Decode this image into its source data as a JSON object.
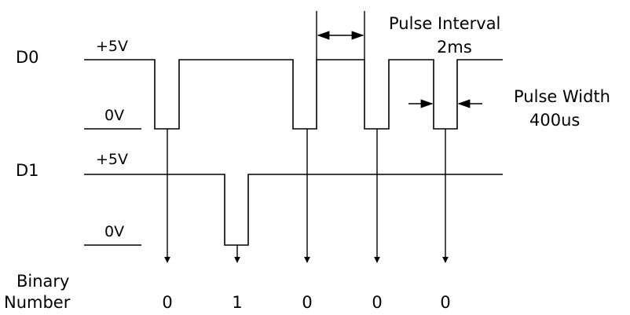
{
  "signals": {
    "d0": {
      "name": "D0",
      "high": "+5V",
      "low": "0V"
    },
    "d1": {
      "name": "D1",
      "high": "+5V",
      "low": "0V"
    }
  },
  "annotations": {
    "interval_title": "Pulse Interval",
    "interval_value": "2ms",
    "width_title": "Pulse Width",
    "width_value": "400us"
  },
  "binary": {
    "label_line1": "Binary",
    "label_line2": "Number",
    "digits": [
      "0",
      "1",
      "0",
      "0",
      "0"
    ]
  }
}
